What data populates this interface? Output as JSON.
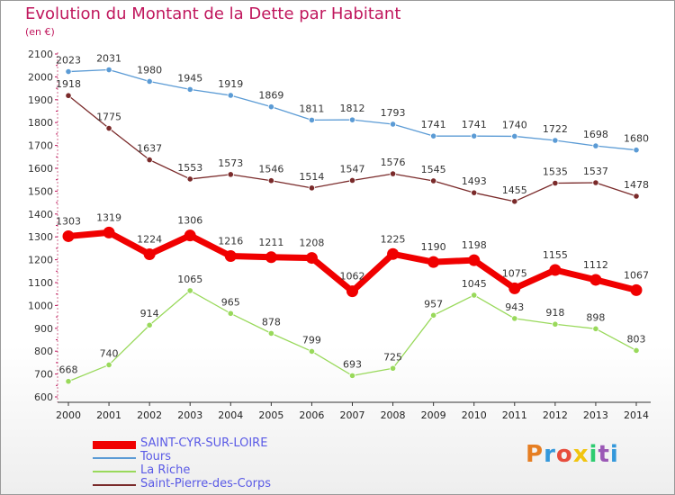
{
  "title": "Evolution du Montant de la Dette par Habitant",
  "unit_label": "(en €)",
  "logo_text": "Proxiti",
  "chart_data": {
    "type": "line",
    "title": "Evolution du Montant de la Dette par Habitant",
    "ylabel": "(en €)",
    "xlabel": "",
    "x": [
      "2000",
      "2001",
      "2002",
      "2003",
      "2004",
      "2005",
      "2006",
      "2007",
      "2008",
      "2009",
      "2010",
      "2011",
      "2012",
      "2013",
      "2014"
    ],
    "ylim": [
      600,
      2100
    ],
    "yticks": [
      600,
      700,
      800,
      900,
      1000,
      1100,
      1200,
      1300,
      1400,
      1500,
      1600,
      1700,
      1800,
      1900,
      2000,
      2100
    ],
    "grid": false,
    "legend_position": "bottom",
    "series": [
      {
        "name": "SAINT-CYR-SUR-LOIRE",
        "color": "#f00000",
        "highlight": true,
        "values": [
          1303,
          1319,
          1224,
          1306,
          1216,
          1211,
          1208,
          1062,
          1225,
          1190,
          1198,
          1075,
          1155,
          1112,
          1067
        ]
      },
      {
        "name": "Tours",
        "color": "#5b9bd5",
        "highlight": false,
        "values": [
          2023,
          2031,
          1980,
          1945,
          1919,
          1869,
          1811,
          1812,
          1793,
          1741,
          1741,
          1740,
          1722,
          1698,
          1680
        ]
      },
      {
        "name": "La Riche",
        "color": "#99d95b",
        "highlight": false,
        "values": [
          668,
          740,
          914,
          1065,
          965,
          878,
          799,
          693,
          725,
          957,
          1045,
          943,
          918,
          898,
          803
        ]
      },
      {
        "name": "Saint-Pierre-des-Corps",
        "color": "#7a2a2a",
        "highlight": false,
        "values": [
          1918,
          1775,
          1637,
          1553,
          1573,
          1546,
          1514,
          1547,
          1576,
          1545,
          1493,
          1455,
          1535,
          1537,
          1478
        ]
      }
    ]
  }
}
